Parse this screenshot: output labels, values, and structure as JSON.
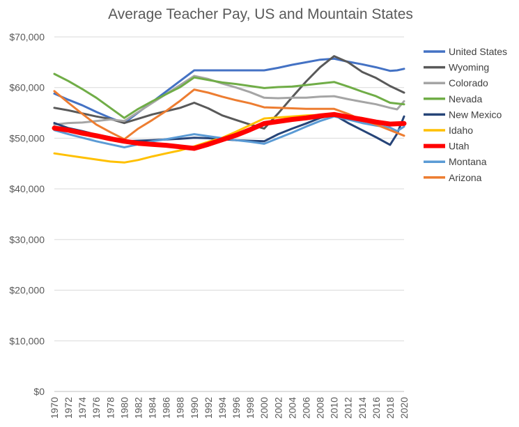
{
  "chart_data": {
    "type": "line",
    "title": "Average Teacher Pay, US and Mountain States",
    "xlabel": "",
    "ylabel": "",
    "ylim": [
      0,
      70000
    ],
    "y_ticks": [
      "$0",
      "$10,000",
      "$20,000",
      "$30,000",
      "$40,000",
      "$50,000",
      "$60,000",
      "$70,000"
    ],
    "y_tick_values": [
      0,
      10000,
      20000,
      30000,
      40000,
      50000,
      60000,
      70000
    ],
    "x_ticks": [
      "1970",
      "1972",
      "1974",
      "1976",
      "1978",
      "1980",
      "1982",
      "1984",
      "1986",
      "1988",
      "1990",
      "1992",
      "1994",
      "1996",
      "1998",
      "2000",
      "2002",
      "2004",
      "2006",
      "2008",
      "2010",
      "2012",
      "2014",
      "2016",
      "2018",
      "2020"
    ],
    "x_range": [
      1970,
      2020
    ],
    "grid": true,
    "legend_position": "right",
    "series": [
      {
        "name": "United States",
        "color": "#4472c4",
        "width": 3,
        "points": [
          [
            1970,
            58800
          ],
          [
            1972,
            57600
          ],
          [
            1974,
            56500
          ],
          [
            1976,
            55200
          ],
          [
            1978,
            54000
          ],
          [
            1980,
            53000
          ],
          [
            1990,
            63400
          ],
          [
            2000,
            63400
          ],
          [
            2002,
            63900
          ],
          [
            2004,
            64500
          ],
          [
            2006,
            65000
          ],
          [
            2008,
            65500
          ],
          [
            2010,
            65700
          ],
          [
            2012,
            65100
          ],
          [
            2014,
            64600
          ],
          [
            2016,
            64000
          ],
          [
            2018,
            63300
          ],
          [
            2019,
            63400
          ],
          [
            2020,
            63700
          ]
        ]
      },
      {
        "name": "Wyoming",
        "color": "#595959",
        "width": 3,
        "points": [
          [
            1970,
            56000
          ],
          [
            1972,
            55500
          ],
          [
            1974,
            54900
          ],
          [
            1976,
            54300
          ],
          [
            1978,
            53800
          ],
          [
            1980,
            53000
          ],
          [
            1984,
            54700
          ],
          [
            1988,
            56000
          ],
          [
            1990,
            57000
          ],
          [
            1992,
            55900
          ],
          [
            1994,
            54500
          ],
          [
            1996,
            53600
          ],
          [
            1998,
            52700
          ],
          [
            2000,
            51900
          ],
          [
            2002,
            54900
          ],
          [
            2004,
            58100
          ],
          [
            2006,
            61200
          ],
          [
            2008,
            64000
          ],
          [
            2010,
            66200
          ],
          [
            2012,
            65000
          ],
          [
            2014,
            63100
          ],
          [
            2016,
            61900
          ],
          [
            2018,
            60300
          ],
          [
            2020,
            59000
          ]
        ]
      },
      {
        "name": "Colorado",
        "color": "#a5a5a5",
        "width": 3,
        "points": [
          [
            1970,
            52700
          ],
          [
            1972,
            53000
          ],
          [
            1974,
            53100
          ],
          [
            1976,
            53400
          ],
          [
            1978,
            53700
          ],
          [
            1980,
            53400
          ],
          [
            1990,
            62300
          ],
          [
            1992,
            61700
          ],
          [
            1994,
            60800
          ],
          [
            1996,
            60000
          ],
          [
            1998,
            59100
          ],
          [
            2000,
            58000
          ],
          [
            2002,
            57900
          ],
          [
            2004,
            58000
          ],
          [
            2006,
            58000
          ],
          [
            2008,
            58200
          ],
          [
            2010,
            58300
          ],
          [
            2012,
            57700
          ],
          [
            2014,
            57200
          ],
          [
            2016,
            56700
          ],
          [
            2018,
            56000
          ],
          [
            2019,
            55700
          ],
          [
            2020,
            57300
          ]
        ]
      },
      {
        "name": "Nevada",
        "color": "#70ad47",
        "width": 3,
        "points": [
          [
            1970,
            62700
          ],
          [
            1972,
            61300
          ],
          [
            1974,
            59700
          ],
          [
            1976,
            58000
          ],
          [
            1978,
            56000
          ],
          [
            1980,
            54000
          ],
          [
            1982,
            55800
          ],
          [
            1984,
            57300
          ],
          [
            1986,
            58700
          ],
          [
            1988,
            60100
          ],
          [
            1990,
            62000
          ],
          [
            1992,
            61500
          ],
          [
            1994,
            61000
          ],
          [
            1996,
            60700
          ],
          [
            1998,
            60300
          ],
          [
            2000,
            59900
          ],
          [
            2002,
            60100
          ],
          [
            2004,
            60200
          ],
          [
            2006,
            60500
          ],
          [
            2008,
            60800
          ],
          [
            2010,
            61100
          ],
          [
            2012,
            60200
          ],
          [
            2014,
            59200
          ],
          [
            2016,
            58300
          ],
          [
            2018,
            57000
          ],
          [
            2020,
            56700
          ]
        ]
      },
      {
        "name": "New Mexico",
        "color": "#264478",
        "width": 3,
        "points": [
          [
            1970,
            53000
          ],
          [
            1972,
            52000
          ],
          [
            1974,
            51400
          ],
          [
            1976,
            50700
          ],
          [
            1978,
            50200
          ],
          [
            1980,
            49400
          ],
          [
            1984,
            49600
          ],
          [
            1988,
            49900
          ],
          [
            1990,
            50100
          ],
          [
            1992,
            50000
          ],
          [
            1994,
            49800
          ],
          [
            1996,
            49600
          ],
          [
            1998,
            49500
          ],
          [
            2000,
            49400
          ],
          [
            2002,
            50800
          ],
          [
            2004,
            51900
          ],
          [
            2006,
            52900
          ],
          [
            2008,
            54000
          ],
          [
            2010,
            54600
          ],
          [
            2012,
            53000
          ],
          [
            2014,
            51600
          ],
          [
            2016,
            50200
          ],
          [
            2018,
            48700
          ],
          [
            2019,
            50900
          ],
          [
            2020,
            54300
          ]
        ]
      },
      {
        "name": "Idaho",
        "color": "#ffc000",
        "width": 3,
        "points": [
          [
            1970,
            47000
          ],
          [
            1972,
            46600
          ],
          [
            1974,
            46200
          ],
          [
            1976,
            45800
          ],
          [
            1978,
            45400
          ],
          [
            1980,
            45200
          ],
          [
            1982,
            45700
          ],
          [
            1984,
            46400
          ],
          [
            1986,
            47000
          ],
          [
            1988,
            47600
          ],
          [
            1990,
            48400
          ],
          [
            1992,
            49300
          ],
          [
            1994,
            50100
          ],
          [
            1996,
            51300
          ],
          [
            1998,
            52600
          ],
          [
            2000,
            53900
          ],
          [
            2002,
            54100
          ],
          [
            2004,
            54300
          ],
          [
            2006,
            54500
          ],
          [
            2008,
            54600
          ],
          [
            2010,
            54800
          ],
          [
            2012,
            54400
          ],
          [
            2014,
            54000
          ],
          [
            2016,
            53300
          ],
          [
            2018,
            52700
          ],
          [
            2020,
            52700
          ]
        ]
      },
      {
        "name": "Utah",
        "color": "#ff0000",
        "width": 7,
        "points": [
          [
            1970,
            52000
          ],
          [
            1972,
            51600
          ],
          [
            1974,
            51000
          ],
          [
            1976,
            50500
          ],
          [
            1978,
            49900
          ],
          [
            1980,
            49400
          ],
          [
            1982,
            49000
          ],
          [
            1984,
            48800
          ],
          [
            1986,
            48600
          ],
          [
            1988,
            48300
          ],
          [
            1990,
            48000
          ],
          [
            1992,
            48800
          ],
          [
            1994,
            49700
          ],
          [
            1996,
            50600
          ],
          [
            1998,
            51700
          ],
          [
            2000,
            52900
          ],
          [
            2002,
            53300
          ],
          [
            2004,
            53700
          ],
          [
            2006,
            54000
          ],
          [
            2008,
            54400
          ],
          [
            2010,
            54700
          ],
          [
            2012,
            54200
          ],
          [
            2014,
            53700
          ],
          [
            2016,
            53200
          ],
          [
            2018,
            52800
          ],
          [
            2020,
            52900
          ]
        ]
      },
      {
        "name": "Montana",
        "color": "#5b9bd5",
        "width": 3,
        "points": [
          [
            1970,
            51600
          ],
          [
            1972,
            50800
          ],
          [
            1974,
            50100
          ],
          [
            1976,
            49400
          ],
          [
            1978,
            48800
          ],
          [
            1980,
            48200
          ],
          [
            1982,
            48800
          ],
          [
            1984,
            49400
          ],
          [
            1986,
            49800
          ],
          [
            1988,
            50300
          ],
          [
            1990,
            50800
          ],
          [
            1992,
            50400
          ],
          [
            1994,
            50000
          ],
          [
            1996,
            49600
          ],
          [
            1998,
            49300
          ],
          [
            2000,
            48900
          ],
          [
            2002,
            50000
          ],
          [
            2004,
            51100
          ],
          [
            2006,
            52300
          ],
          [
            2008,
            53400
          ],
          [
            2010,
            54300
          ],
          [
            2012,
            53700
          ],
          [
            2014,
            53000
          ],
          [
            2016,
            52500
          ],
          [
            2018,
            52100
          ],
          [
            2019,
            51400
          ],
          [
            2020,
            52300
          ]
        ]
      },
      {
        "name": "Arizona",
        "color": "#ed7d31",
        "width": 3,
        "points": [
          [
            1970,
            59300
          ],
          [
            1972,
            57000
          ],
          [
            1974,
            54800
          ],
          [
            1976,
            52700
          ],
          [
            1978,
            51200
          ],
          [
            1980,
            49800
          ],
          [
            1982,
            51900
          ],
          [
            1984,
            53600
          ],
          [
            1986,
            55400
          ],
          [
            1988,
            57400
          ],
          [
            1990,
            59600
          ],
          [
            1992,
            59000
          ],
          [
            1994,
            58200
          ],
          [
            1996,
            57500
          ],
          [
            1998,
            56900
          ],
          [
            2000,
            56100
          ],
          [
            2002,
            56000
          ],
          [
            2004,
            55900
          ],
          [
            2006,
            55800
          ],
          [
            2008,
            55800
          ],
          [
            2010,
            55800
          ],
          [
            2012,
            54800
          ],
          [
            2014,
            53600
          ],
          [
            2016,
            52700
          ],
          [
            2018,
            51600
          ],
          [
            2020,
            50500
          ]
        ]
      }
    ]
  }
}
